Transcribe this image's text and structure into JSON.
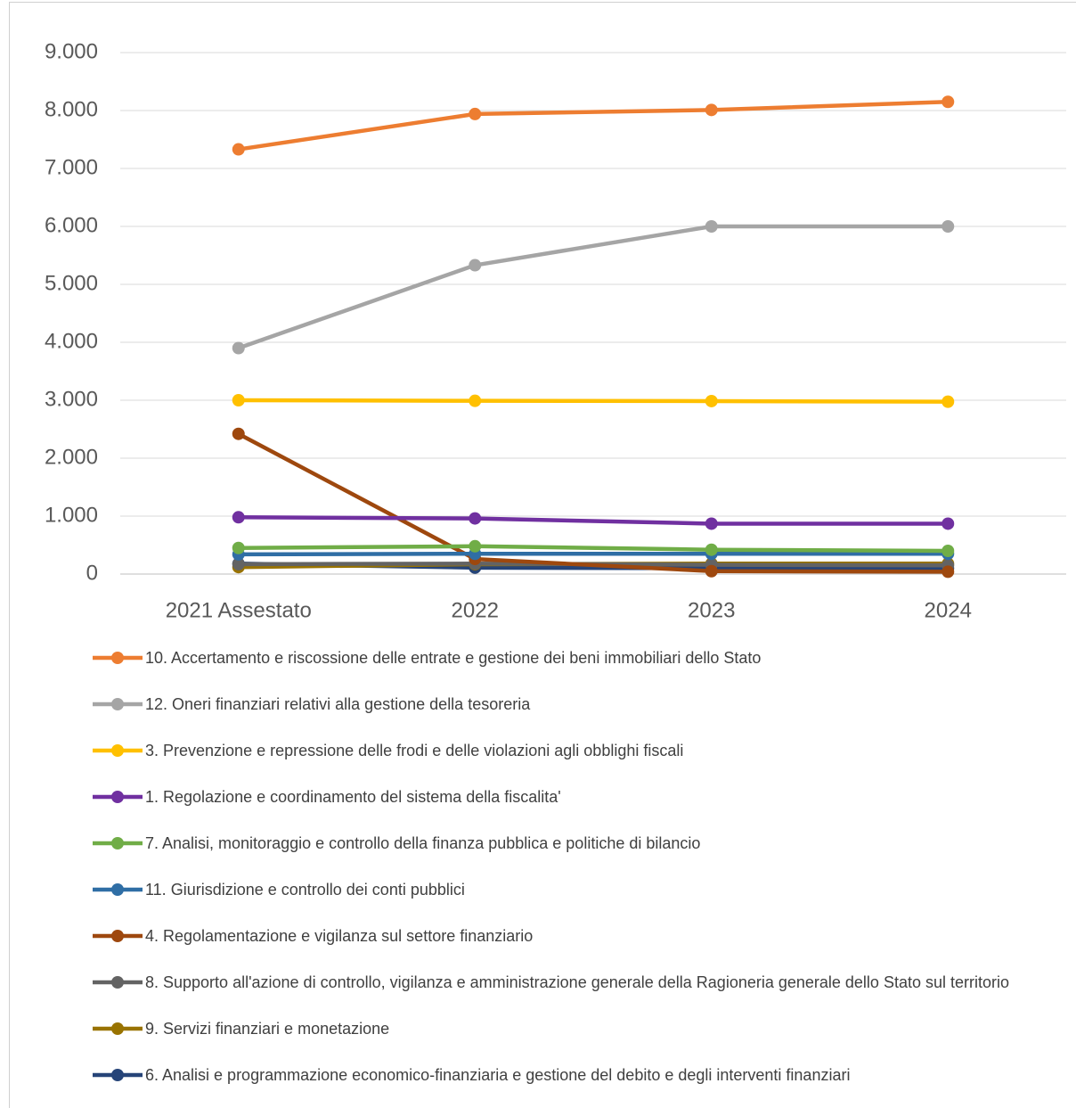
{
  "chart_data": {
    "type": "line",
    "categories": [
      "2021 Assestato",
      "2022",
      "2023",
      "2024"
    ],
    "ylim": [
      0,
      9000
    ],
    "yticks": [
      0,
      {
        "value": 1000,
        "label": "1.000"
      },
      {
        "value": 2000,
        "label": "2.000"
      },
      {
        "value": 3000,
        "label": "3.000"
      },
      {
        "value": 4000,
        "label": "4.000"
      },
      {
        "value": 5000,
        "label": "5.000"
      },
      {
        "value": 6000,
        "label": "6.000"
      },
      {
        "value": 7000,
        "label": "7.000"
      },
      {
        "value": 8000,
        "label": "8.000"
      },
      {
        "value": 9000,
        "label": "9.000"
      }
    ],
    "grid": true,
    "legend": "bottom",
    "series": [
      {
        "name": "10. Accertamento e riscossione delle entrate e gestione dei beni immobiliari dello Stato",
        "color": "#ED7D31",
        "values": [
          7330,
          7940,
          8010,
          8150
        ]
      },
      {
        "name": "12. Oneri finanziari relativi alla gestione della tesoreria",
        "color": "#A5A5A5",
        "values": [
          3900,
          5330,
          6000,
          6000
        ]
      },
      {
        "name": "3. Prevenzione e repressione delle frodi e delle violazioni agli obblighi fiscali",
        "color": "#FFC000",
        "values": [
          3000,
          2990,
          2985,
          2975
        ]
      },
      {
        "name": "1. Regolazione e coordinamento del sistema della fiscalita'",
        "color": "#7030A0",
        "values": [
          980,
          960,
          870,
          870
        ]
      },
      {
        "name": "7. Analisi, monitoraggio e controllo della finanza pubblica e politiche di bilancio",
        "color": "#70AD47",
        "values": [
          450,
          480,
          420,
          400
        ]
      },
      {
        "name": "11. Giurisdizione e controllo dei conti pubblici",
        "color": "#2F6EA5",
        "values": [
          340,
          350,
          350,
          350
        ]
      },
      {
        "name": "4. Regolamentazione e vigilanza sul settore finanziario",
        "color": "#9E480E",
        "values": [
          2420,
          260,
          50,
          40
        ]
      },
      {
        "name": "8. Supporto all'azione di controllo, vigilanza e amministrazione generale della Ragioneria generale dello Stato sul territorio",
        "color": "#636363",
        "values": [
          170,
          180,
          160,
          150
        ]
      },
      {
        "name": "9. Servizi finanziari e monetazione",
        "color": "#997300",
        "values": [
          120,
          170,
          180,
          180
        ]
      },
      {
        "name": "6. Analisi e programmazione economico-finanziaria e gestione del debito e degli interventi finanziari",
        "color": "#264478",
        "values": [
          180,
          110,
          100,
          100
        ]
      }
    ]
  }
}
